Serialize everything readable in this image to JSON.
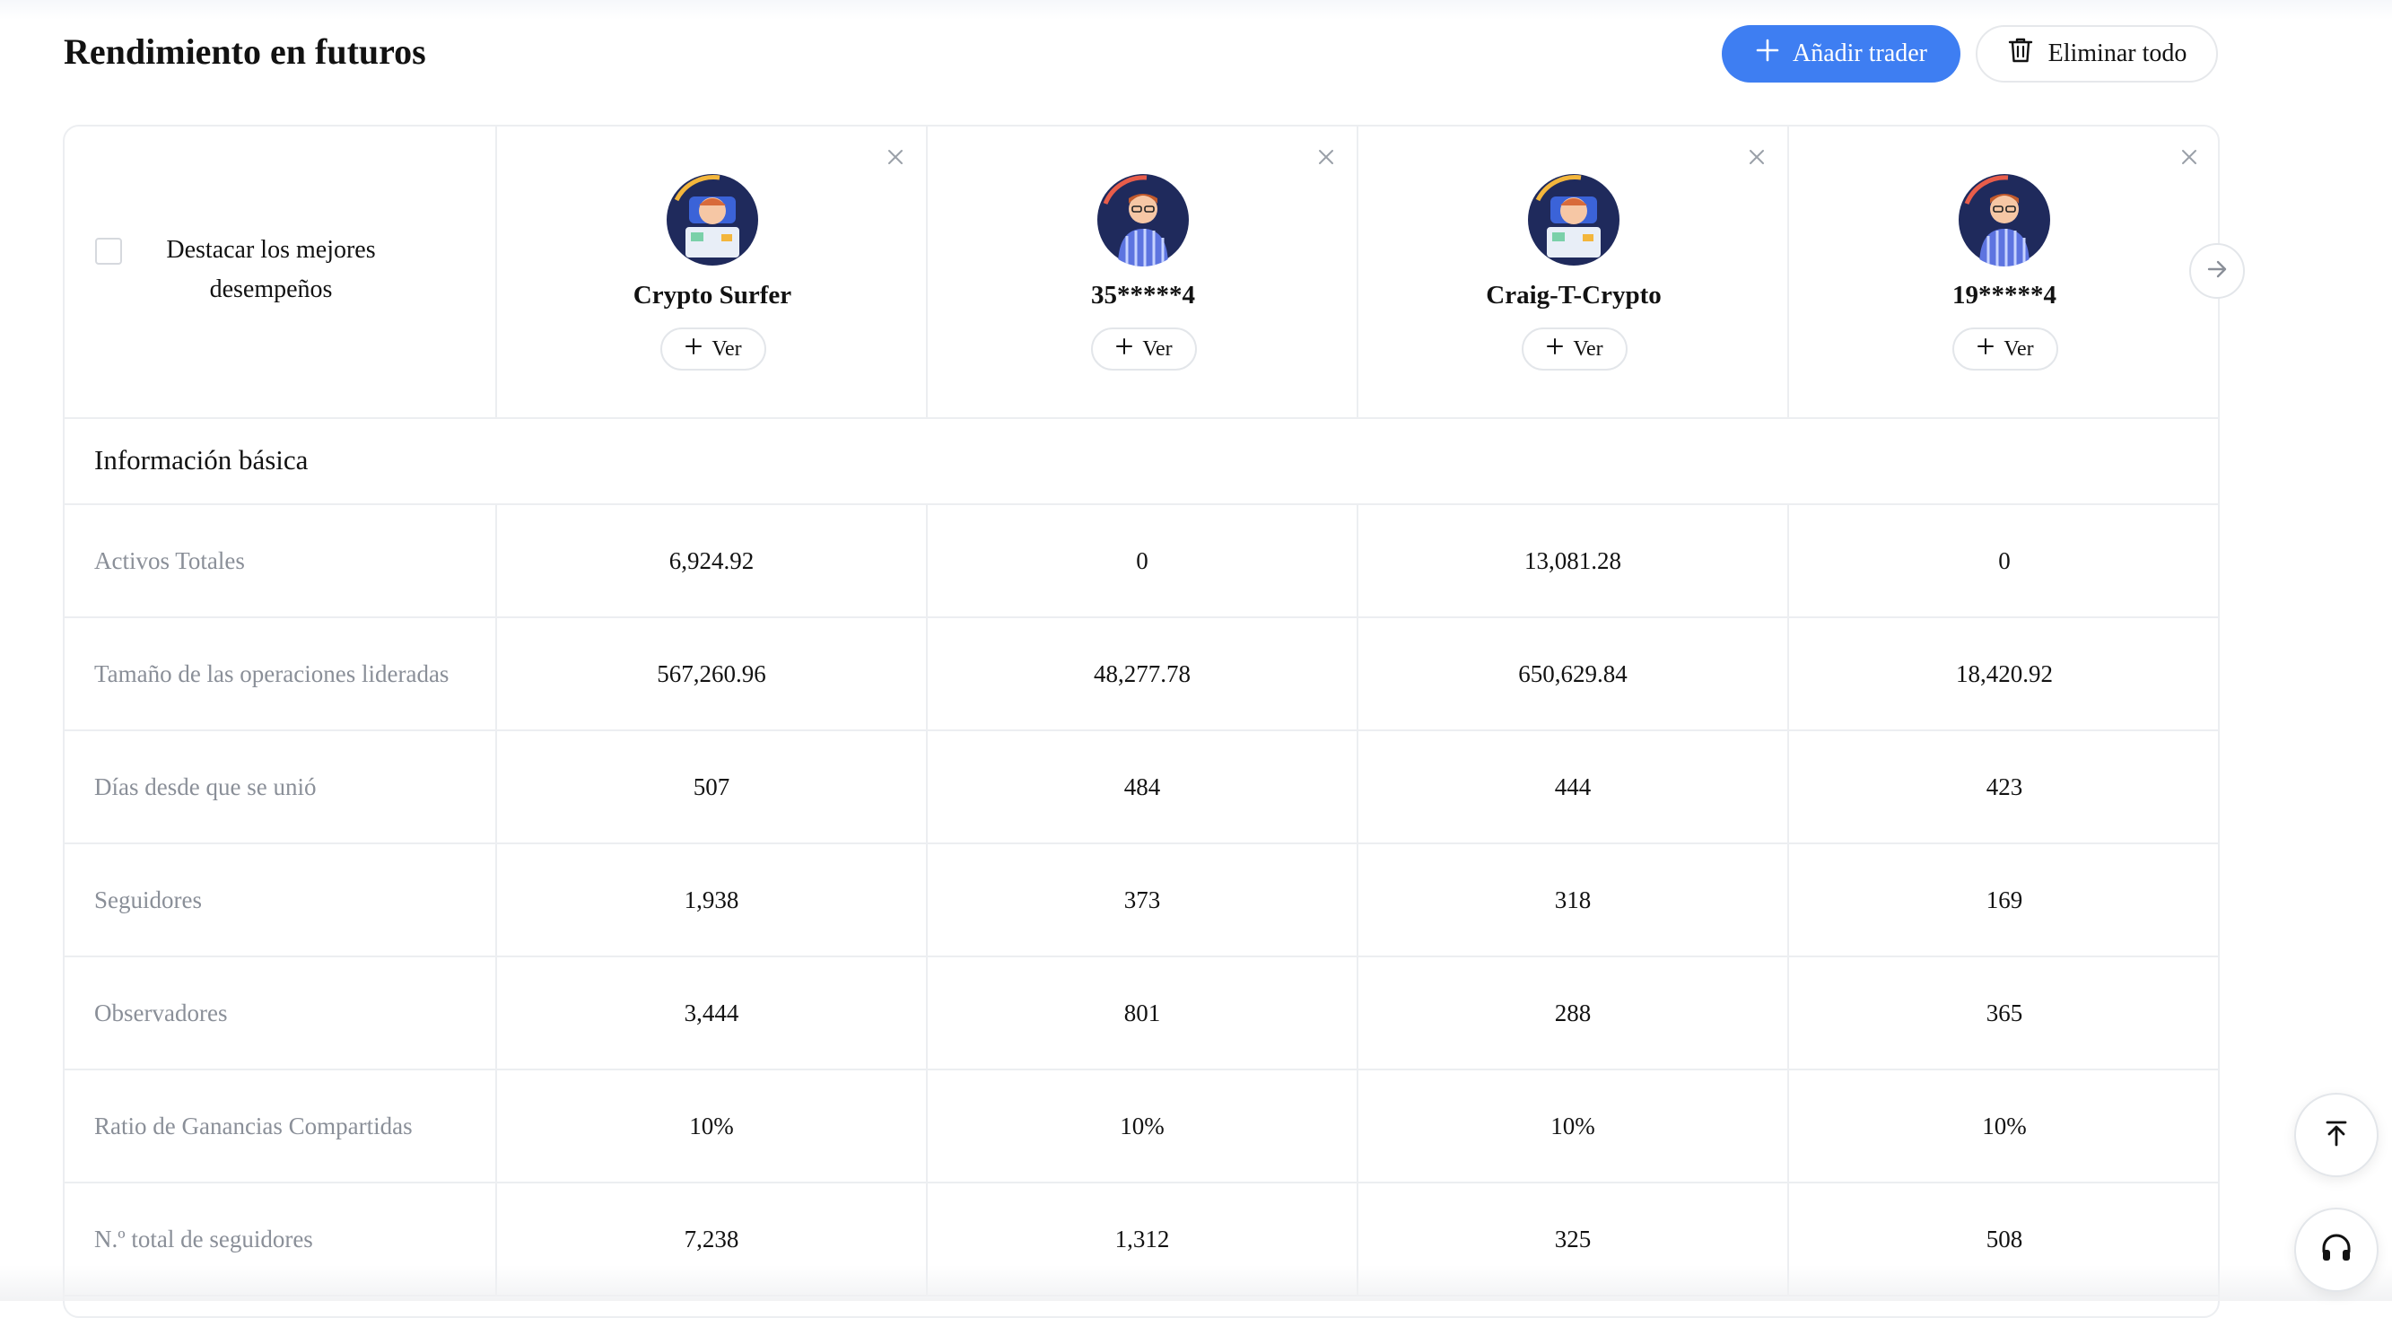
{
  "page": {
    "title": "Rendimiento en futuros",
    "add_trader_label": "Añadir trader",
    "delete_all_label": "Eliminar todo",
    "accent_color": "#3e7ef2"
  },
  "header": {
    "highlight_label": "Destacar los mejores desempeños",
    "highlight_checked": false,
    "traders": [
      {
        "name": "Crypto Surfer",
        "view_label": "Ver",
        "avatar": "surfer-avatar-icon"
      },
      {
        "name": "35*****4",
        "view_label": "Ver",
        "avatar": "striped-shirt-avatar-icon"
      },
      {
        "name": "Craig-T-Crypto",
        "view_label": "Ver",
        "avatar": "surfer-avatar-icon"
      },
      {
        "name": "19*****4",
        "view_label": "Ver",
        "avatar": "striped-shirt-avatar-icon"
      }
    ]
  },
  "section": {
    "title": "Información básica"
  },
  "rows": [
    {
      "label": "Activos Totales",
      "values": [
        "6,924.92",
        "0",
        "13,081.28",
        "0"
      ]
    },
    {
      "label": "Tamaño de las operaciones lideradas",
      "values": [
        "567,260.96",
        "48,277.78",
        "650,629.84",
        "18,420.92"
      ]
    },
    {
      "label": "Días desde que se unió",
      "values": [
        "507",
        "484",
        "444",
        "423"
      ]
    },
    {
      "label": "Seguidores",
      "values": [
        "1,938",
        "373",
        "318",
        "169"
      ]
    },
    {
      "label": "Observadores",
      "values": [
        "3,444",
        "801",
        "288",
        "365"
      ]
    },
    {
      "label": "Ratio de Ganancias Compartidas",
      "values": [
        "10%",
        "10%",
        "10%",
        "10%"
      ]
    },
    {
      "label": "N.º total de seguidores",
      "values": [
        "7,238",
        "1,312",
        "325",
        "508"
      ]
    }
  ],
  "floating": {
    "scroll_top_icon": "arrow-up-to-top-icon",
    "support_icon": "headset-icon"
  }
}
